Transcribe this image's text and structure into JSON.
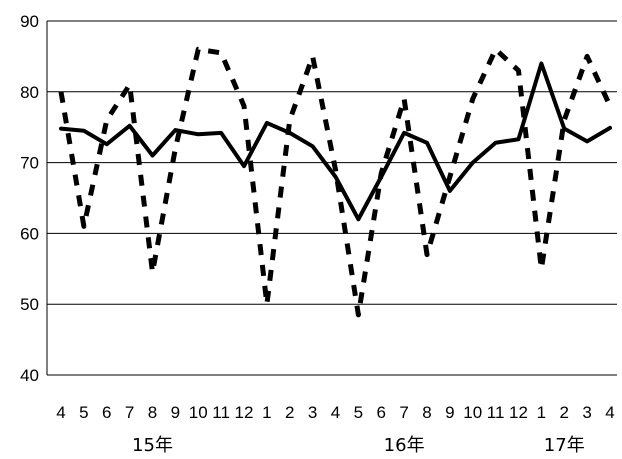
{
  "chart_data": {
    "type": "line",
    "title": "",
    "xlabel": "",
    "ylabel": "",
    "ylim": [
      40,
      90
    ],
    "yticks": [
      40,
      50,
      60,
      70,
      80,
      90
    ],
    "grid": "horizontal",
    "legend": "none",
    "categories": [
      "4",
      "5",
      "6",
      "7",
      "8",
      "9",
      "10",
      "11",
      "12",
      "1",
      "2",
      "3",
      "4",
      "5",
      "6",
      "7",
      "8",
      "9",
      "10",
      "11",
      "12",
      "1",
      "2",
      "3",
      "4"
    ],
    "year_labels": [
      {
        "label": "15年",
        "category_index": 4
      },
      {
        "label": "16年",
        "category_index": 15
      },
      {
        "label": "17年",
        "category_index": 22
      }
    ],
    "series": [
      {
        "style": "solid",
        "color": "#000000",
        "values": [
          74.8,
          74.5,
          72.6,
          75.2,
          71.0,
          74.6,
          74.0,
          74.2,
          69.5,
          75.6,
          74.2,
          72.3,
          68.0,
          62.0,
          68.0,
          74.2,
          72.8,
          66.0,
          70.0,
          72.8,
          73.3,
          84.0,
          74.8,
          73.0,
          74.9
        ]
      },
      {
        "style": "dashed",
        "color": "#000000",
        "values": [
          80.0,
          61.0,
          76.0,
          81.0,
          54.5,
          72.0,
          86.0,
          85.5,
          78.0,
          50.0,
          76.0,
          85.0,
          69.0,
          48.5,
          68.5,
          79.0,
          57.0,
          68.0,
          79.0,
          86.0,
          83.0,
          55.0,
          76.0,
          85.0,
          78.0
        ]
      }
    ]
  }
}
